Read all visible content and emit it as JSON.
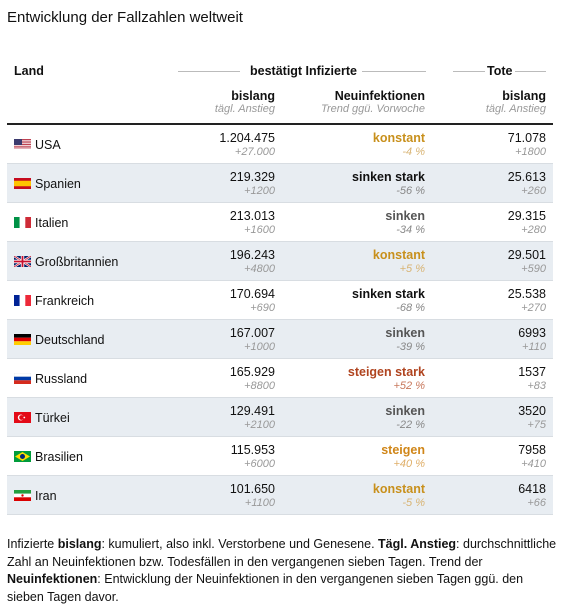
{
  "title": "Entwicklung der Fallzahlen weltweit",
  "header": {
    "land": "Land",
    "group_cases": "bestätigt Infizierte",
    "group_deaths": "Tote",
    "cases": "bislang",
    "cases_sub": "tägl. Anstieg",
    "trend": "Neuinfektionen",
    "trend_sub": "Trend ggü. Vorwoche",
    "deaths": "bislang",
    "deaths_sub": "tägl. Anstieg"
  },
  "rows": [
    {
      "country": "USA",
      "cases": "1.204.475",
      "cases_increase": "+27.000",
      "trend": "konstant",
      "trend_pct": "-4 %",
      "color": "#c8901c",
      "pct_color": "#d8b474",
      "deaths": "71.078",
      "deaths_increase": "+1800"
    },
    {
      "country": "Spanien",
      "cases": "219.329",
      "cases_increase": "+1200",
      "trend": "sinken stark",
      "trend_pct": "-56 %",
      "color": "#111111",
      "pct_color": "#888888",
      "deaths": "25.613",
      "deaths_increase": "+260"
    },
    {
      "country": "Italien",
      "cases": "213.013",
      "cases_increase": "+1600",
      "trend": "sinken",
      "trend_pct": "-34 %",
      "color": "#555555",
      "pct_color": "#888888",
      "deaths": "29.315",
      "deaths_increase": "+280"
    },
    {
      "country": "Großbritannien",
      "cases": "196.243",
      "cases_increase": "+4800",
      "trend": "konstant",
      "trend_pct": "+5 %",
      "color": "#c8901c",
      "pct_color": "#d8b474",
      "deaths": "29.501",
      "deaths_increase": "+590"
    },
    {
      "country": "Frankreich",
      "cases": "170.694",
      "cases_increase": "+690",
      "trend": "sinken stark",
      "trend_pct": "-68 %",
      "color": "#111111",
      "pct_color": "#888888",
      "deaths": "25.538",
      "deaths_increase": "+270"
    },
    {
      "country": "Deutschland",
      "cases": "167.007",
      "cases_increase": "+1000",
      "trend": "sinken",
      "trend_pct": "-39 %",
      "color": "#555555",
      "pct_color": "#888888",
      "deaths": "6993",
      "deaths_increase": "+110"
    },
    {
      "country": "Russland",
      "cases": "165.929",
      "cases_increase": "+8800",
      "trend": "steigen stark",
      "trend_pct": "+52 %",
      "color": "#b0441f",
      "pct_color": "#c8785c",
      "deaths": "1537",
      "deaths_increase": "+83"
    },
    {
      "country": "Türkei",
      "cases": "129.491",
      "cases_increase": "+2100",
      "trend": "sinken",
      "trend_pct": "-22 %",
      "color": "#555555",
      "pct_color": "#888888",
      "deaths": "3520",
      "deaths_increase": "+75"
    },
    {
      "country": "Brasilien",
      "cases": "115.953",
      "cases_increase": "+6000",
      "trend": "steigen",
      "trend_pct": "+40 %",
      "color": "#d08618",
      "pct_color": "#dfae68",
      "deaths": "7958",
      "deaths_increase": "+410"
    },
    {
      "country": "Iran",
      "cases": "101.650",
      "cases_increase": "+1100",
      "trend": "konstant",
      "trend_pct": "-5 %",
      "color": "#c8901c",
      "pct_color": "#d8b474",
      "deaths": "6418",
      "deaths_increase": "+66"
    }
  ],
  "footnote": [
    {
      "text": "Infizierte ",
      "bold": false
    },
    {
      "text": "bislang",
      "bold": true
    },
    {
      "text": ": kumuliert, also inkl. Verstorbene und Genesene. ",
      "bold": false
    },
    {
      "text": "Tägl. Anstieg",
      "bold": true
    },
    {
      "text": ": durchschnittliche Zahl an Neuinfektionen bzw. Todesfällen in den vergangenen sieben Tagen. Trend der ",
      "bold": false
    },
    {
      "text": "Neuinfektionen",
      "bold": true
    },
    {
      "text": ": Entwicklung der Neuinfektionen in den vergangenen sieben Tagen ggü. den sieben Tagen davor.",
      "bold": false
    }
  ]
}
